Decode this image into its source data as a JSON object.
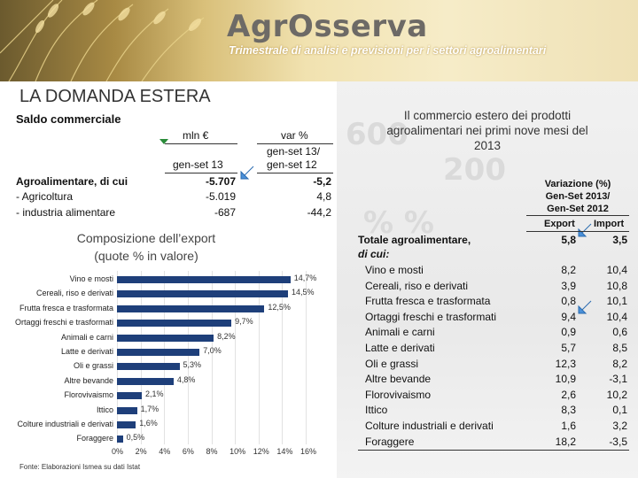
{
  "header": {
    "logo": "AgrOsserva",
    "tagline": "Trimestrale di analisi e previsioni per i settori agroalimentari"
  },
  "page_title": "LA DOMANDA ESTERA",
  "saldo": {
    "title": "Saldo commerciale",
    "col1_head": "mln €",
    "col1_sub": "gen-set 13",
    "col2_head": "var %",
    "col2_sub1": "gen-set 13/",
    "col2_sub2": "gen-set 12",
    "rows": [
      {
        "label": "Agroalimentare, di cui",
        "mln": "-5.707",
        "var": "-5,2"
      },
      {
        "label": "- Agricoltura",
        "mln": "-5.019",
        "var": "4,8"
      },
      {
        "label": "- industria alimentare",
        "mln": "-687",
        "var": "-44,2"
      }
    ]
  },
  "composition": {
    "title_line1": "Composizione dell’export",
    "title_line2": "(quote % in valore)"
  },
  "chart_data": {
    "type": "bar",
    "orientation": "horizontal",
    "title": "Composizione dell’export (quote % in valore)",
    "categories": [
      "Vino e mosti",
      "Cereali, riso e derivati",
      "Frutta fresca e trasformata",
      "Ortaggi freschi e trasformati",
      "Animali e carni",
      "Latte e derivati",
      "Oli e grassi",
      "Altre bevande",
      "Florovivaismo",
      "Ittico",
      "Colture industriali e derivati",
      "Foraggere"
    ],
    "values": [
      14.7,
      14.5,
      12.5,
      9.7,
      8.2,
      7.0,
      5.3,
      4.8,
      2.1,
      1.7,
      1.6,
      0.5
    ],
    "value_labels": [
      "14,7%",
      "14,5%",
      "12,5%",
      "9,7%",
      "8,2%",
      "7,0%",
      "5,3%",
      "4,8%",
      "2,1%",
      "1,7%",
      "1,6%",
      "0,5%"
    ],
    "xticks": [
      "0%",
      "2%",
      "4%",
      "6%",
      "8%",
      "10%",
      "12%",
      "14%",
      "16%"
    ],
    "xlim": [
      0,
      16
    ],
    "source": "Fonte: Elaborazioni Ismea su dati Istat"
  },
  "intro": "Il commercio estero dei prodotti agroalimentari nei primi nove mesi del 2013",
  "variation": {
    "head_line1": "Variazione (%)",
    "head_line2": "Gen-Set 2013/",
    "head_line3": "Gen-Set 2012",
    "col_export": "Export",
    "col_import": "Import",
    "total_label": "Totale agroalimentare,",
    "total_sub": "di cui:",
    "total_export": "5,8",
    "total_import": "3,5",
    "rows": [
      {
        "label": "Vino e mosti",
        "export": "8,2",
        "import": "10,4"
      },
      {
        "label": "Cereali, riso e derivati",
        "export": "3,9",
        "import": "10,8"
      },
      {
        "label": "Frutta fresca e trasformata",
        "export": "0,8",
        "import": "10,1"
      },
      {
        "label": "Ortaggi freschi e trasformati",
        "export": "9,4",
        "import": "10,4"
      },
      {
        "label": "Animali e carni",
        "export": "0,9",
        "import": "0,6"
      },
      {
        "label": "Latte e derivati",
        "export": "5,7",
        "import": "8,5"
      },
      {
        "label": "Oli e grassi",
        "export": "12,3",
        "import": "8,2"
      },
      {
        "label": "Altre bevande",
        "export": "10,9",
        "import": "-3,1"
      },
      {
        "label": "Florovivaismo",
        "export": "2,6",
        "import": "10,2"
      },
      {
        "label": "Ittico",
        "export": "8,3",
        "import": "0,1"
      },
      {
        "label": "Colture industriali e derivati",
        "export": "1,6",
        "import": "3,2"
      },
      {
        "label": "Foraggere",
        "export": "18,2",
        "import": "-3,5"
      }
    ]
  },
  "colors": {
    "bar": "#1e3f7a",
    "marker": "#2a8c3a",
    "arrow": "#4a90d9"
  }
}
